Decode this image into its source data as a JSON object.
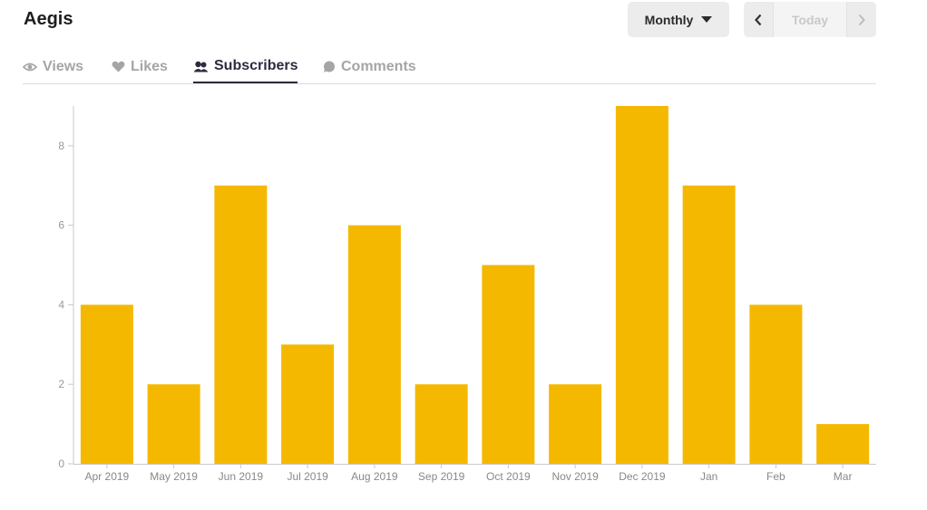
{
  "header": {
    "title": "Aegis"
  },
  "period": {
    "label": "Monthly"
  },
  "pager": {
    "today_label": "Today"
  },
  "tabs": [
    {
      "label": "Views",
      "icon": "eye-icon",
      "active": false
    },
    {
      "label": "Likes",
      "icon": "heart-icon",
      "active": false
    },
    {
      "label": "Subscribers",
      "icon": "people-icon",
      "active": true
    },
    {
      "label": "Comments",
      "icon": "comment-icon",
      "active": false
    }
  ],
  "colors": {
    "bar": "#f5b800",
    "active_tab": "#2e2b3f",
    "inactive_tab": "#a5a5a7"
  },
  "chart_data": {
    "type": "bar",
    "categories": [
      "Apr 2019",
      "May 2019",
      "Jun 2019",
      "Jul 2019",
      "Aug 2019",
      "Sep 2019",
      "Oct 2019",
      "Nov 2019",
      "Dec 2019",
      "Jan",
      "Feb",
      "Mar"
    ],
    "values": [
      4,
      2,
      7,
      3,
      6,
      2,
      5,
      2,
      9,
      7,
      4,
      1
    ],
    "ylim": [
      0,
      9
    ],
    "yticks": [
      0,
      2,
      4,
      6,
      8
    ],
    "grid": false,
    "legend": "none"
  }
}
